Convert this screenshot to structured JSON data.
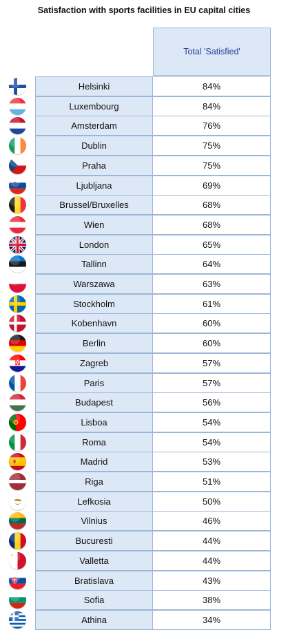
{
  "chart_data": {
    "type": "table",
    "title": "Satisfaction with sports facilities in EU capital cities",
    "column_header": "Total 'Satisfied'",
    "rows": [
      {
        "city": "Helsinki",
        "value": "84%",
        "flag": "finland-flag-icon"
      },
      {
        "city": "Luxembourg",
        "value": "84%",
        "flag": "luxembourg-flag-icon"
      },
      {
        "city": "Amsterdam",
        "value": "76%",
        "flag": "netherlands-flag-icon"
      },
      {
        "city": "Dublin",
        "value": "75%",
        "flag": "ireland-flag-icon"
      },
      {
        "city": "Praha",
        "value": "75%",
        "flag": "czech-flag-icon"
      },
      {
        "city": "Ljubljana",
        "value": "69%",
        "flag": "slovenia-flag-icon"
      },
      {
        "city": "Brussel/Bruxelles",
        "value": "68%",
        "flag": "belgium-flag-icon"
      },
      {
        "city": "Wien",
        "value": "68%",
        "flag": "austria-flag-icon"
      },
      {
        "city": "London",
        "value": "65%",
        "flag": "uk-flag-icon"
      },
      {
        "city": "Tallinn",
        "value": "64%",
        "flag": "estonia-flag-icon"
      },
      {
        "city": "Warszawa",
        "value": "63%",
        "flag": "poland-flag-icon"
      },
      {
        "city": "Stockholm",
        "value": "61%",
        "flag": "sweden-flag-icon"
      },
      {
        "city": "Kobenhavn",
        "value": "60%",
        "flag": "denmark-flag-icon"
      },
      {
        "city": "Berlin",
        "value": "60%",
        "flag": "germany-flag-icon"
      },
      {
        "city": "Zagreb",
        "value": "57%",
        "flag": "croatia-flag-icon"
      },
      {
        "city": "Paris",
        "value": "57%",
        "flag": "france-flag-icon"
      },
      {
        "city": "Budapest",
        "value": "56%",
        "flag": "hungary-flag-icon"
      },
      {
        "city": "Lisboa",
        "value": "54%",
        "flag": "portugal-flag-icon"
      },
      {
        "city": "Roma",
        "value": "54%",
        "flag": "italy-flag-icon"
      },
      {
        "city": "Madrid",
        "value": "53%",
        "flag": "spain-flag-icon"
      },
      {
        "city": "Riga",
        "value": "51%",
        "flag": "latvia-flag-icon"
      },
      {
        "city": "Lefkosia",
        "value": "50%",
        "flag": "cyprus-flag-icon"
      },
      {
        "city": "Vilnius",
        "value": "46%",
        "flag": "lithuania-flag-icon"
      },
      {
        "city": "Bucuresti",
        "value": "44%",
        "flag": "romania-flag-icon"
      },
      {
        "city": "Valletta",
        "value": "44%",
        "flag": "malta-flag-icon"
      },
      {
        "city": "Bratislava",
        "value": "43%",
        "flag": "slovakia-flag-icon"
      },
      {
        "city": "Sofia",
        "value": "38%",
        "flag": "bulgaria-flag-icon"
      },
      {
        "city": "Athina",
        "value": "34%",
        "flag": "greece-flag-icon"
      }
    ]
  },
  "colors": {
    "header_text": "#2a3f9a",
    "cell_fill": "#dde8f6",
    "border": "#9cb6d6"
  }
}
